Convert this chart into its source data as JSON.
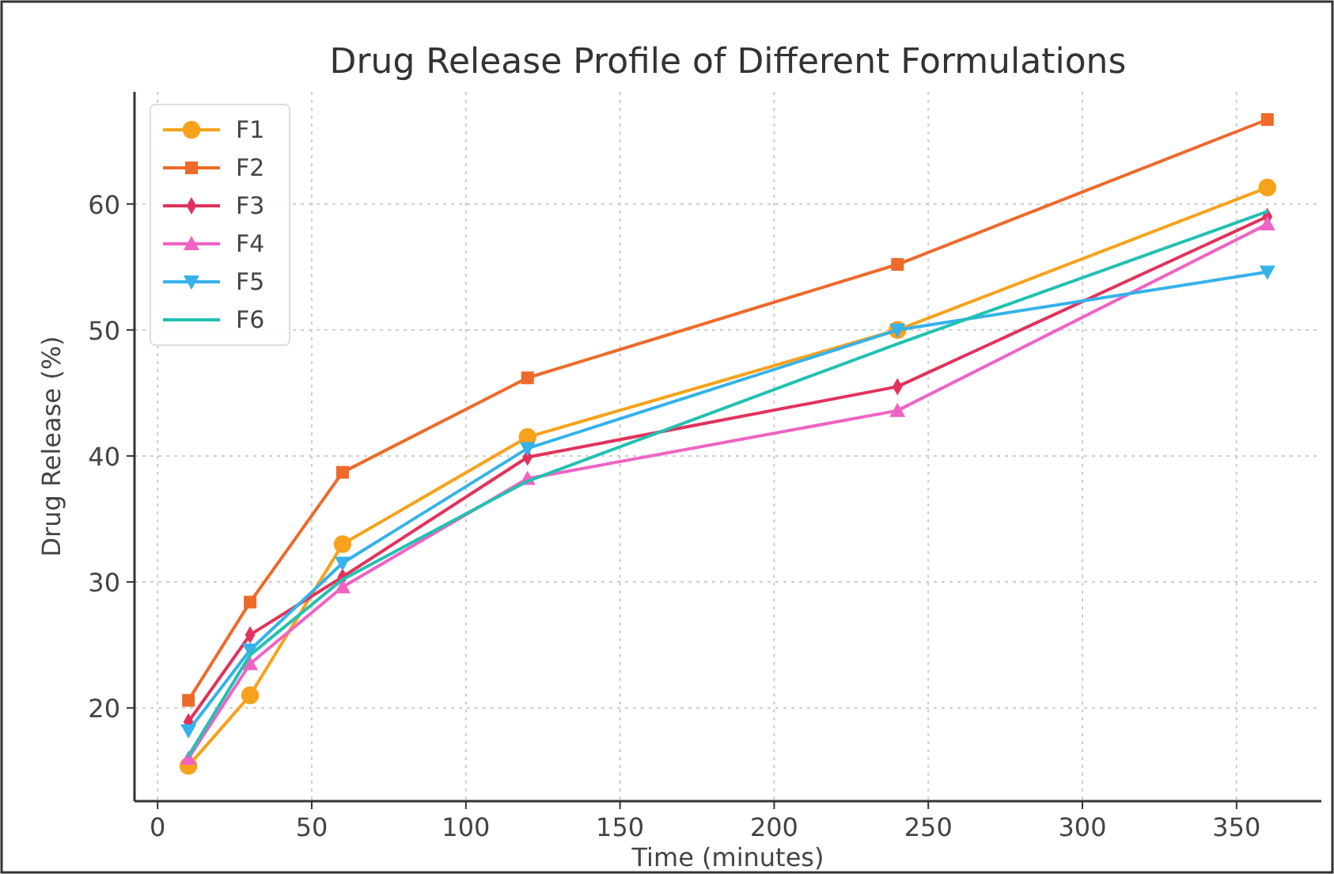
{
  "chart_data": {
    "type": "line",
    "title": "Drug Release Profile of Different Formulations",
    "xlabel": "Time (minutes)",
    "ylabel": "Drug Release (%)",
    "x": [
      10,
      30,
      60,
      120,
      240,
      360
    ],
    "series": [
      {
        "name": "F1",
        "color": "#f7a21b",
        "marker": "circle",
        "values": [
          15.4,
          21,
          33,
          41.5,
          50,
          61.3
        ]
      },
      {
        "name": "F2",
        "color": "#ee6a2a",
        "marker": "square",
        "values": [
          20.6,
          28.4,
          38.7,
          46.2,
          55.2,
          66.7
        ]
      },
      {
        "name": "F3",
        "color": "#e2325c",
        "marker": "diamond",
        "values": [
          18.9,
          25.8,
          30.4,
          39.9,
          45.5,
          59
        ]
      },
      {
        "name": "F4",
        "color": "#f062c4",
        "marker": "triangle",
        "values": [
          16,
          23.5,
          29.6,
          38.2,
          43.6,
          58.4
        ]
      },
      {
        "name": "F5",
        "color": "#35b2ea",
        "marker": "triangle-down",
        "values": [
          18.2,
          24.6,
          31.5,
          40.6,
          50,
          54.6
        ]
      },
      {
        "name": "F6",
        "color": "#22c1b2",
        "marker": "none",
        "values": [
          16.2,
          24.2,
          30.2,
          38,
          48.9,
          59.4
        ]
      }
    ],
    "xlim": [
      -7.5,
      377.5
    ],
    "xticks": [
      0,
      50,
      100,
      150,
      200,
      250,
      300,
      350
    ],
    "ylim": [
      12.6,
      68.9
    ],
    "yticks": [
      20,
      30,
      40,
      50,
      60
    ],
    "grid": true,
    "legend": "top left",
    "line_style": "solid"
  }
}
